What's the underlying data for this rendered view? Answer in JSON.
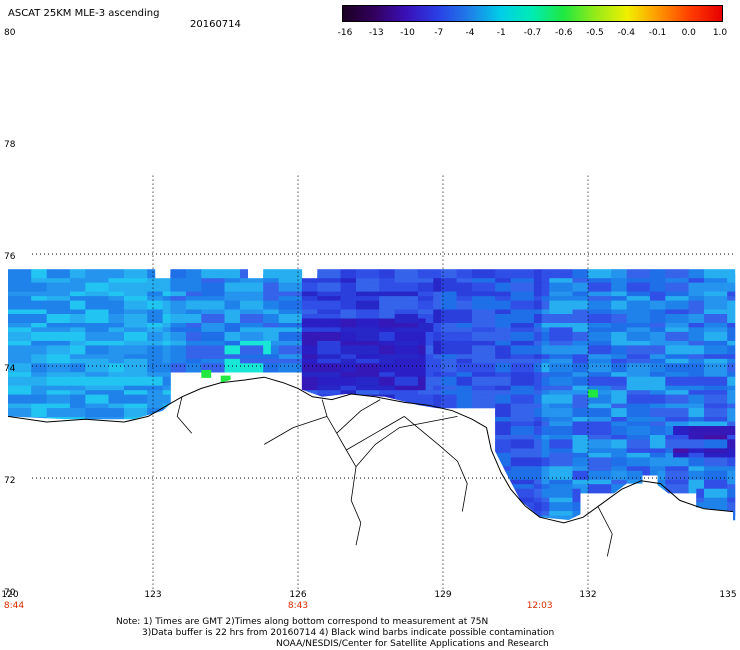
{
  "header": {
    "title": "ASCAT 25KM MLE-3 ascending",
    "date": "20160714"
  },
  "colorbar": {
    "labels": [
      "-16",
      "-13",
      "-10",
      "-7",
      "-4",
      "-1",
      "-0.7",
      "-0.6",
      "-0.5",
      "-0.4",
      "-0.1",
      "0.0",
      "1.0"
    ],
    "stops": [
      "#1a0022",
      "#33005e",
      "#3a10b8",
      "#2a3ee6",
      "#1f7ee8",
      "#00cfe8",
      "#00ecb2",
      "#20e840",
      "#96ea18",
      "#f0f000",
      "#ff9600",
      "#ff3c00",
      "#e60000"
    ]
  },
  "y_axis": {
    "labels": [
      {
        "lat": 80,
        "text": "80"
      },
      {
        "lat": 78,
        "text": "78"
      },
      {
        "lat": 76,
        "text": "76"
      },
      {
        "lat": 74,
        "text": "74"
      },
      {
        "lat": 72,
        "text": "72"
      },
      {
        "lat": 70,
        "text": "70"
      }
    ]
  },
  "x_axis": {
    "labels": [
      {
        "lon": 120,
        "text": "120"
      },
      {
        "lon": 123,
        "text": "123"
      },
      {
        "lon": 126,
        "text": "126"
      },
      {
        "lon": 129,
        "text": "129"
      },
      {
        "lon": 132,
        "text": "132"
      },
      {
        "lon": 135,
        "text": "135"
      }
    ],
    "times": [
      {
        "lon": 120,
        "text": "8:44"
      },
      {
        "lon": 126,
        "text": "8:43"
      },
      {
        "lon": 131,
        "text": "12:03"
      }
    ]
  },
  "map": {
    "lon_range": [
      120,
      135
    ],
    "lat_range": [
      70,
      80
    ],
    "gridlines": {
      "lon": [
        123,
        126,
        129,
        132
      ],
      "lat": [
        72,
        74,
        76
      ]
    },
    "swath_lat_range": [
      71.05,
      75.65
    ],
    "colors": {
      "land": "#ffffff",
      "coastline": "#000000",
      "grid": "#000000",
      "no_data": "#ffffff"
    }
  },
  "footer": {
    "note_line1": "Note: 1) Times are GMT 2)Times along bottom correspond to measurement at 75N",
    "note_line2": "3)Data buffer is 22 hrs from 20160714 4) Black wind barbs indicate possible contamination",
    "credit": "NOAA/NESDIS/Center for Satellite Applications and Research"
  }
}
